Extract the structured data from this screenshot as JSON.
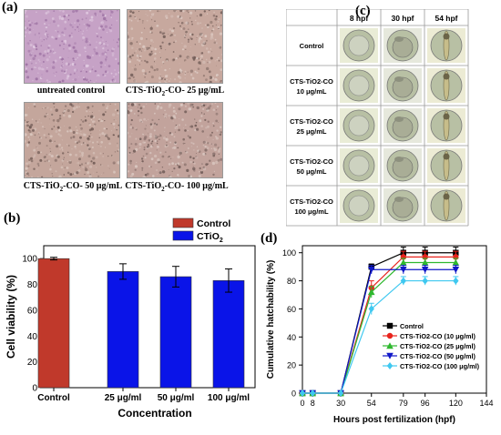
{
  "panel_labels": {
    "a": "(a)",
    "b": "(b)",
    "c": "(c)",
    "d": "(d)"
  },
  "panel_a": {
    "captions": [
      {
        "main": "untreated control",
        "sub": "",
        "rest": ""
      },
      {
        "main": "CTS-TiO",
        "sub": "2",
        "rest": "-CO- 25 μg/mL"
      },
      {
        "main": "CTS-TiO",
        "sub": "2",
        "rest": "-CO- 50 μg/mL"
      },
      {
        "main": "CTS-TiO",
        "sub": "2",
        "rest": "-CO- 100 μg/mL"
      }
    ],
    "colors": {
      "control": "#c8a4c4",
      "treated": "#c4a49a"
    }
  },
  "panel_c": {
    "columns": [
      "8 hpf",
      "30 hpf",
      "54 hpf"
    ],
    "rows": [
      {
        "l1": "Control",
        "l2": ""
      },
      {
        "l1": "CTS-TiO2-CO",
        "l2": "10 μg/mL"
      },
      {
        "l1": "CTS-TiO2-CO",
        "l2": "25 μg/mL"
      },
      {
        "l1": "CTS-TiO2-CO",
        "l2": "50 μg/mL"
      },
      {
        "l1": "CTS-TiO2-CO",
        "l2": "100 μg/mL"
      }
    ]
  },
  "chart_data": [
    {
      "type": "bar",
      "title": "",
      "xlabel": "Concentration",
      "ylabel": "Cell viability (%)",
      "ylim": [
        0,
        110
      ],
      "yticks": [
        0,
        20,
        40,
        60,
        80,
        100
      ],
      "categories": [
        "Control",
        "25 μg/ml",
        "50 μg/ml",
        "100 μg/ml"
      ],
      "legend_position": "top-right",
      "series": [
        {
          "name": "Control",
          "color": "#c0392b",
          "values": [
            100,
            null,
            null,
            null
          ],
          "errors": [
            1,
            null,
            null,
            null
          ]
        },
        {
          "name": "CTiO2",
          "color": "#0a14e8",
          "values": [
            null,
            90,
            86,
            83
          ],
          "errors": [
            null,
            6,
            8,
            9
          ]
        }
      ]
    },
    {
      "type": "line",
      "title": "",
      "xlabel": "Hours post fertilization (hpf)",
      "ylabel": "Cumulative hatchability (%)",
      "xlim": [
        0,
        144
      ],
      "ylim": [
        0,
        105
      ],
      "xticks": [
        0,
        8,
        30,
        54,
        79,
        96,
        120,
        144
      ],
      "yticks": [
        0,
        20,
        40,
        60,
        80,
        100
      ],
      "legend_position": "lower-right",
      "x": [
        0,
        8,
        30,
        54,
        79,
        96,
        120
      ],
      "series": [
        {
          "name": "Control",
          "color": "#000000",
          "marker": "square",
          "values": [
            0,
            0,
            0,
            90,
            100,
            100,
            100
          ],
          "errors": [
            0,
            0,
            0,
            2,
            4,
            4,
            4
          ]
        },
        {
          "name": "CTS-TiO2-CO (10 μg/ml)",
          "color": "#e8231c",
          "marker": "circle",
          "values": [
            0,
            0,
            0,
            75,
            97,
            97,
            97
          ],
          "errors": [
            0,
            0,
            0,
            5,
            4,
            4,
            4
          ]
        },
        {
          "name": "CTS-TiO2-CO (25 μg/ml)",
          "color": "#2fb82f",
          "marker": "triangle-up",
          "values": [
            0,
            0,
            0,
            72,
            93,
            93,
            93
          ],
          "errors": [
            0,
            0,
            0,
            4,
            3,
            3,
            3
          ]
        },
        {
          "name": "CTS-TiO2-CO (50 μg/ml)",
          "color": "#1018c8",
          "marker": "triangle-down",
          "values": [
            0,
            0,
            0,
            88,
            88,
            88,
            88
          ],
          "errors": [
            0,
            0,
            0,
            3,
            3,
            3,
            3
          ]
        },
        {
          "name": "CTS-TiO2-CO (100 μg/ml)",
          "color": "#3fc8f0",
          "marker": "diamond",
          "values": [
            0,
            0,
            0,
            60,
            80,
            80,
            80
          ],
          "errors": [
            0,
            0,
            0,
            4,
            3,
            3,
            3
          ]
        }
      ]
    }
  ]
}
